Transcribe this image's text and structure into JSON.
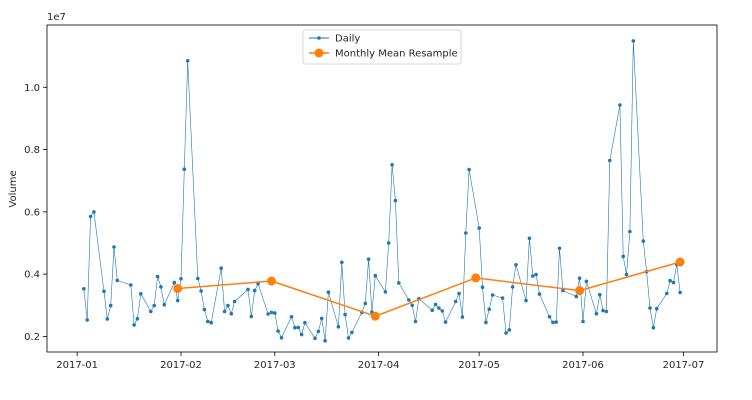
{
  "chart_data": {
    "type": "line",
    "title": "",
    "xlabel": "",
    "ylabel": "Volume",
    "y_multiplier_label": "1e7",
    "y_scale": 10000000,
    "ylim": [
      1500000,
      12000000
    ],
    "xlim": [
      "2016-12-23",
      "2017-07-11"
    ],
    "x_ticks": [
      "2017-01",
      "2017-02",
      "2017-03",
      "2017-04",
      "2017-05",
      "2017-06",
      "2017-07"
    ],
    "x_tick_dates": [
      "2017-01-01",
      "2017-02-01",
      "2017-03-01",
      "2017-04-01",
      "2017-05-01",
      "2017-06-01",
      "2017-07-01"
    ],
    "y_ticks": [
      2000000,
      4000000,
      6000000,
      8000000,
      10000000
    ],
    "y_tick_labels": [
      "0.2",
      "0.4",
      "0.6",
      "0.8",
      "1.0"
    ],
    "legend": {
      "position": "top-center",
      "entries": [
        "Daily",
        "Monthly Mean Resample"
      ]
    },
    "series": [
      {
        "name": "Daily",
        "color": "#1f77b4",
        "x": [
          "2017-01-03",
          "2017-01-04",
          "2017-01-05",
          "2017-01-06",
          "2017-01-09",
          "2017-01-10",
          "2017-01-11",
          "2017-01-12",
          "2017-01-13",
          "2017-01-17",
          "2017-01-18",
          "2017-01-19",
          "2017-01-20",
          "2017-01-23",
          "2017-01-24",
          "2017-01-25",
          "2017-01-26",
          "2017-01-27",
          "2017-01-30",
          "2017-01-31",
          "2017-02-01",
          "2017-02-02",
          "2017-02-03",
          "2017-02-06",
          "2017-02-07",
          "2017-02-08",
          "2017-02-09",
          "2017-02-10",
          "2017-02-13",
          "2017-02-14",
          "2017-02-15",
          "2017-02-16",
          "2017-02-17",
          "2017-02-21",
          "2017-02-22",
          "2017-02-23",
          "2017-02-24",
          "2017-02-27",
          "2017-02-28",
          "2017-03-01",
          "2017-03-02",
          "2017-03-03",
          "2017-03-06",
          "2017-03-07",
          "2017-03-08",
          "2017-03-09",
          "2017-03-10",
          "2017-03-13",
          "2017-03-14",
          "2017-03-15",
          "2017-03-16",
          "2017-03-17",
          "2017-03-20",
          "2017-03-21",
          "2017-03-22",
          "2017-03-23",
          "2017-03-24",
          "2017-03-27",
          "2017-03-28",
          "2017-03-29",
          "2017-03-30",
          "2017-03-31",
          "2017-04-03",
          "2017-04-04",
          "2017-04-05",
          "2017-04-06",
          "2017-04-07",
          "2017-04-10",
          "2017-04-11",
          "2017-04-12",
          "2017-04-13",
          "2017-04-17",
          "2017-04-18",
          "2017-04-19",
          "2017-04-20",
          "2017-04-21",
          "2017-04-24",
          "2017-04-25",
          "2017-04-26",
          "2017-04-27",
          "2017-04-28",
          "2017-05-01",
          "2017-05-02",
          "2017-05-03",
          "2017-05-04",
          "2017-05-05",
          "2017-05-08",
          "2017-05-09",
          "2017-05-10",
          "2017-05-11",
          "2017-05-12",
          "2017-05-15",
          "2017-05-16",
          "2017-05-17",
          "2017-05-18",
          "2017-05-19",
          "2017-05-22",
          "2017-05-23",
          "2017-05-24",
          "2017-05-25",
          "2017-05-26",
          "2017-05-30",
          "2017-05-31",
          "2017-06-01",
          "2017-06-02",
          "2017-06-05",
          "2017-06-06",
          "2017-06-07",
          "2017-06-08",
          "2017-06-09",
          "2017-06-12",
          "2017-06-13",
          "2017-06-14",
          "2017-06-15",
          "2017-06-16",
          "2017-06-19",
          "2017-06-20",
          "2017-06-21",
          "2017-06-22",
          "2017-06-23",
          "2017-06-26",
          "2017-06-27",
          "2017-06-28",
          "2017-06-29",
          "2017-06-30"
        ],
        "values": [
          3530000,
          2530000,
          5850000,
          6000000,
          3450000,
          2560000,
          2990000,
          4870000,
          3800000,
          3650000,
          2370000,
          2570000,
          3370000,
          2800000,
          2990000,
          3920000,
          3590000,
          3020000,
          3730000,
          3150000,
          3850000,
          7370000,
          10850000,
          3860000,
          3460000,
          2860000,
          2480000,
          2440000,
          4190000,
          2800000,
          2990000,
          2730000,
          3120000,
          3510000,
          2640000,
          3470000,
          3690000,
          2720000,
          2770000,
          2750000,
          2170000,
          1960000,
          2630000,
          2280000,
          2290000,
          2060000,
          2440000,
          1940000,
          2160000,
          2580000,
          1860000,
          3420000,
          2310000,
          4380000,
          2700000,
          1950000,
          2130000,
          2770000,
          3060000,
          4480000,
          2780000,
          3950000,
          3430000,
          5000000,
          7510000,
          6360000,
          3720000,
          3170000,
          3000000,
          2480000,
          3210000,
          2840000,
          3030000,
          2910000,
          2820000,
          2460000,
          3120000,
          3380000,
          2620000,
          5320000,
          7360000,
          5480000,
          3580000,
          2450000,
          2870000,
          3330000,
          3230000,
          2110000,
          2210000,
          3590000,
          4300000,
          3150000,
          5150000,
          3940000,
          3990000,
          3360000,
          2630000,
          2450000,
          2460000,
          4830000,
          3470000,
          3280000,
          3870000,
          2480000,
          3770000,
          2730000,
          3340000,
          2830000,
          2800000,
          7650000,
          9430000,
          4570000,
          3990000,
          5370000,
          11490000,
          5060000,
          4080000,
          2910000,
          2280000,
          2890000,
          3380000,
          3790000,
          3730000,
          4310000,
          3410000
        ]
      },
      {
        "name": "Monthly Mean Resample",
        "color": "#ff7f0e",
        "x": [
          "2017-01-31",
          "2017-02-28",
          "2017-03-31",
          "2017-04-30",
          "2017-05-31",
          "2017-06-30"
        ],
        "values": [
          3540000,
          3780000,
          2650000,
          3880000,
          3470000,
          4390000
        ]
      }
    ]
  }
}
